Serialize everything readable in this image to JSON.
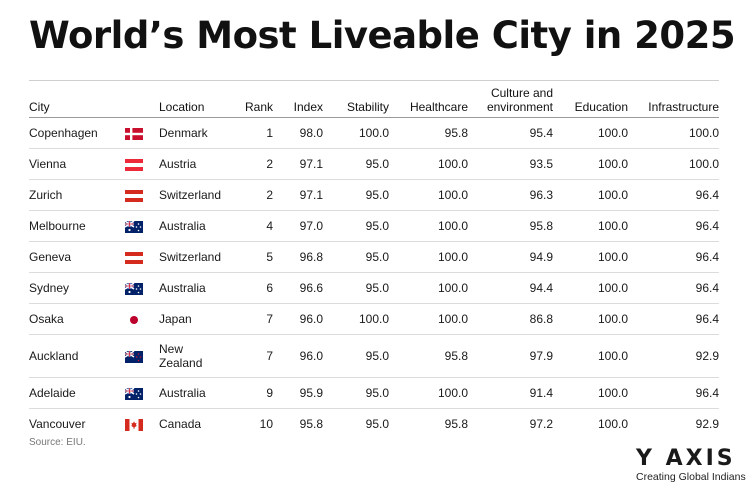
{
  "title": "World’s Most Liveable City in 2025",
  "table": {
    "headers": {
      "city": "City",
      "location": "Location",
      "rank": "Rank",
      "index": "Index",
      "stability": "Stability",
      "healthcare": "Healthcare",
      "culture_line1": "Culture and",
      "culture_line2": "environment",
      "education": "Education",
      "infrastructure": "Infrastructure"
    },
    "rows": [
      {
        "city": "Copenhagen",
        "flag": "denmark-flag-icon",
        "location": "Denmark",
        "rank": "1",
        "index": "98.0",
        "stability": "100.0",
        "healthcare": "95.8",
        "culture": "95.4",
        "education": "100.0",
        "infrastructure": "100.0"
      },
      {
        "city": "Vienna",
        "flag": "austria-flag-icon",
        "location": "Austria",
        "rank": "2",
        "index": "97.1",
        "stability": "95.0",
        "healthcare": "100.0",
        "culture": "93.5",
        "education": "100.0",
        "infrastructure": "100.0"
      },
      {
        "city": "Zurich",
        "flag": "switzerland-flag-icon",
        "location": "Switzerland",
        "rank": "2",
        "index": "97.1",
        "stability": "95.0",
        "healthcare": "100.0",
        "culture": "96.3",
        "education": "100.0",
        "infrastructure": "96.4"
      },
      {
        "city": "Melbourne",
        "flag": "australia-flag-icon",
        "location": "Australia",
        "rank": "4",
        "index": "97.0",
        "stability": "95.0",
        "healthcare": "100.0",
        "culture": "95.8",
        "education": "100.0",
        "infrastructure": "96.4"
      },
      {
        "city": "Geneva",
        "flag": "switzerland-flag-icon",
        "location": "Switzerland",
        "rank": "5",
        "index": "96.8",
        "stability": "95.0",
        "healthcare": "100.0",
        "culture": "94.9",
        "education": "100.0",
        "infrastructure": "96.4"
      },
      {
        "city": "Sydney",
        "flag": "australia-flag-icon",
        "location": "Australia",
        "rank": "6",
        "index": "96.6",
        "stability": "95.0",
        "healthcare": "100.0",
        "culture": "94.4",
        "education": "100.0",
        "infrastructure": "96.4"
      },
      {
        "city": "Osaka",
        "flag": "japan-flag-icon",
        "location": "Japan",
        "rank": "7",
        "index": "96.0",
        "stability": "100.0",
        "healthcare": "100.0",
        "culture": "86.8",
        "education": "100.0",
        "infrastructure": "96.4"
      },
      {
        "city": "Auckland",
        "flag": "new-zealand-flag-icon",
        "location_line1": "New",
        "location_line2": "Zealand",
        "rank": "7",
        "index": "96.0",
        "stability": "95.0",
        "healthcare": "95.8",
        "culture": "97.9",
        "education": "100.0",
        "infrastructure": "92.9"
      },
      {
        "city": "Adelaide",
        "flag": "australia-flag-icon",
        "location": "Australia",
        "rank": "9",
        "index": "95.9",
        "stability": "95.0",
        "healthcare": "100.0",
        "culture": "91.4",
        "education": "100.0",
        "infrastructure": "96.4"
      },
      {
        "city": "Vancouver",
        "flag": "canada-flag-icon",
        "location": "Canada",
        "rank": "10",
        "index": "95.8",
        "stability": "95.0",
        "healthcare": "95.8",
        "culture": "97.2",
        "education": "100.0",
        "infrastructure": "92.9"
      }
    ]
  },
  "source": "Source: EIU.",
  "brand": {
    "logo_text": "Y AXIS",
    "tagline": "Creating Global Indians",
    "accent_color": "#d7262c"
  },
  "colors": {
    "danish_red": "#c8102e",
    "austrian_red": "#ed2939",
    "swiss_red": "#d52b1e",
    "oceania_blue": "#012169",
    "japan_red": "#bc002d",
    "canada_red": "#d52b1e"
  }
}
